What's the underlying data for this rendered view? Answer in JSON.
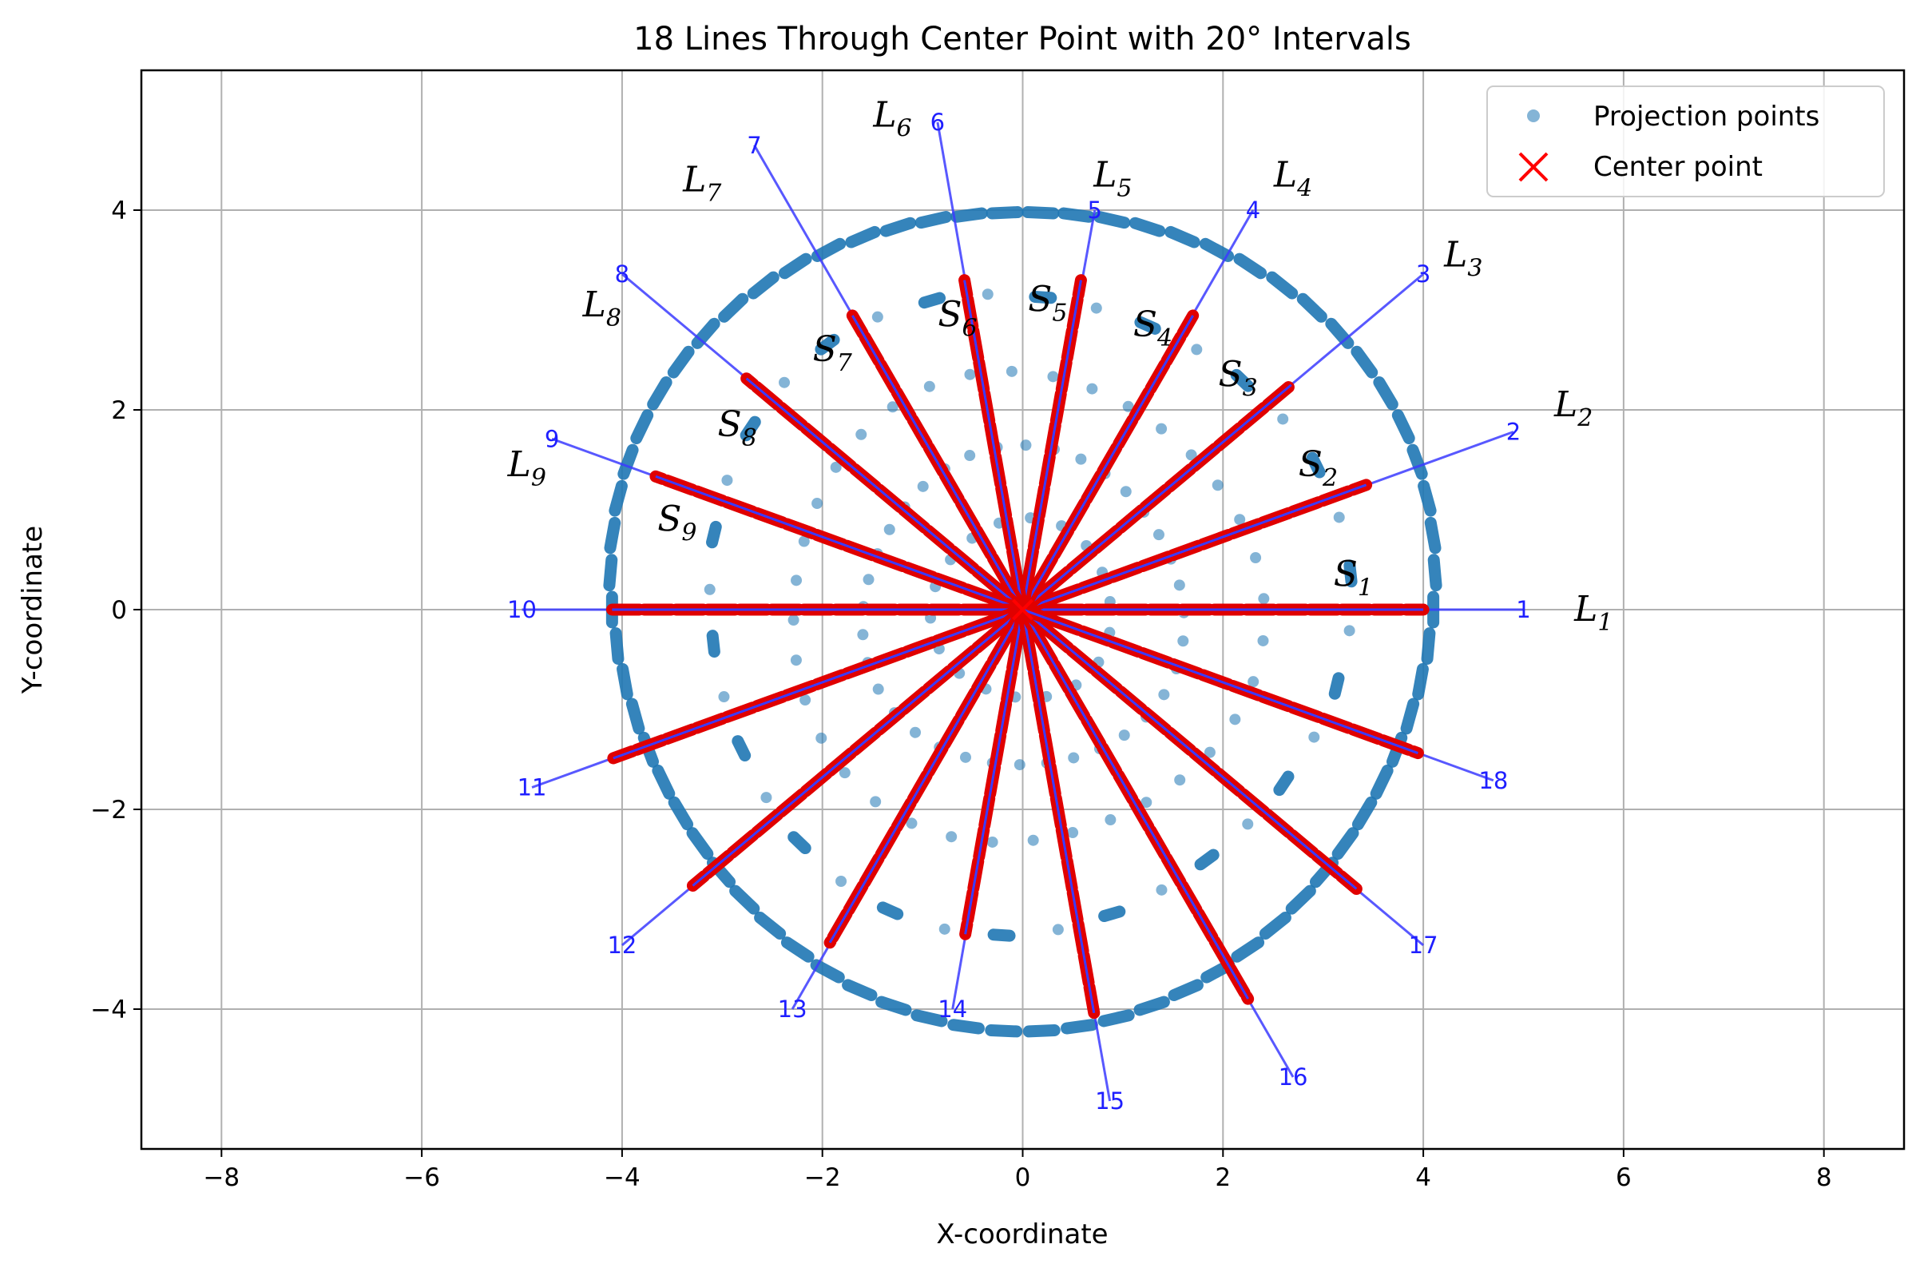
{
  "chart_data": {
    "type": "scatter",
    "title": "18 Lines Through Center Point with 20° Intervals",
    "xlabel": "X-coordinate",
    "ylabel": "Y-coordinate",
    "xlim": [
      -8.8,
      8.8
    ],
    "ylim": [
      -5.4,
      5.4
    ],
    "xticks": [
      -8,
      -6,
      -4,
      -2,
      0,
      2,
      4,
      6,
      8
    ],
    "yticks": [
      -4,
      -2,
      0,
      2,
      4
    ],
    "grid": true,
    "legend_position": "top-right",
    "legend": [
      {
        "label": "Projection points",
        "marker": "circle",
        "color": "#1f77b4"
      },
      {
        "label": "Center point",
        "marker": "x",
        "color": "#ff0000"
      }
    ],
    "center": [
      0,
      0
    ],
    "lines": [
      {
        "label": "1",
        "angle_deg": 0,
        "end": [
          5,
          0
        ],
        "segment_length": 4.0
      },
      {
        "label": "2",
        "angle_deg": 20,
        "end": [
          4.9,
          1.78
        ],
        "segment_length": 3.65
      },
      {
        "label": "3",
        "angle_deg": 40,
        "end": [
          4.0,
          3.36
        ],
        "segment_length": 3.5
      },
      {
        "label": "4",
        "angle_deg": 60,
        "end": [
          2.3,
          4.0
        ],
        "segment_length": 3.4
      },
      {
        "label": "5",
        "angle_deg": 80,
        "end": [
          0.72,
          4.0
        ],
        "segment_length": 3.35
      },
      {
        "label": "6",
        "angle_deg": 100,
        "end": [
          -0.85,
          4.88
        ],
        "segment_length": 3.35
      },
      {
        "label": "7",
        "angle_deg": 120,
        "end": [
          -2.68,
          4.65
        ],
        "segment_length": 3.4
      },
      {
        "label": "8",
        "angle_deg": 140,
        "end": [
          -4.0,
          3.36
        ],
        "segment_length": 3.6
      },
      {
        "label": "9",
        "angle_deg": 160,
        "end": [
          -4.7,
          1.71
        ],
        "segment_length": 3.9
      },
      {
        "label": "10",
        "angle_deg": 180,
        "end": [
          -5,
          0
        ],
        "segment_length": 4.1
      },
      {
        "label": "11",
        "angle_deg": 200,
        "end": [
          -4.9,
          -1.78
        ],
        "segment_length": 4.35
      },
      {
        "label": "12",
        "angle_deg": 220,
        "end": [
          -4.0,
          -3.36
        ],
        "segment_length": 4.3
      },
      {
        "label": "13",
        "angle_deg": 240,
        "end": [
          -2.3,
          -4.0
        ],
        "segment_length": 3.85
      },
      {
        "label": "14",
        "angle_deg": 260,
        "end": [
          -0.7,
          -4.0
        ],
        "segment_length": 3.3
      },
      {
        "label": "15",
        "angle_deg": 280,
        "end": [
          0.87,
          -4.92
        ],
        "segment_length": 4.1
      },
      {
        "label": "16",
        "angle_deg": 300,
        "end": [
          2.7,
          -4.68
        ],
        "segment_length": 4.5
      },
      {
        "label": "17",
        "angle_deg": 320,
        "end": [
          4.0,
          -3.36
        ],
        "segment_length": 4.35
      },
      {
        "label": "18",
        "angle_deg": 340,
        "end": [
          4.7,
          -1.71
        ],
        "segment_length": 4.2
      }
    ],
    "line_annotations": [
      {
        "name": "L",
        "sub": "1",
        "at": [
          5.7,
          0
        ]
      },
      {
        "name": "L",
        "sub": "2",
        "at": [
          5.5,
          2.05
        ]
      },
      {
        "name": "L",
        "sub": "3",
        "at": [
          4.4,
          3.55
        ]
      },
      {
        "name": "L",
        "sub": "4",
        "at": [
          2.7,
          4.35
        ]
      },
      {
        "name": "L",
        "sub": "5",
        "at": [
          0.9,
          4.35
        ]
      },
      {
        "name": "L",
        "sub": "6",
        "at": [
          -1.3,
          4.95
        ]
      },
      {
        "name": "L",
        "sub": "7",
        "at": [
          -3.2,
          4.3
        ]
      },
      {
        "name": "L",
        "sub": "8",
        "at": [
          -4.2,
          3.05
        ]
      },
      {
        "name": "L",
        "sub": "9",
        "at": [
          -4.95,
          1.45
        ]
      }
    ],
    "segment_annotations": [
      {
        "name": "S",
        "sub": "1",
        "at": [
          3.3,
          0.35
        ]
      },
      {
        "name": "S",
        "sub": "2",
        "at": [
          2.95,
          1.45
        ]
      },
      {
        "name": "S",
        "sub": "3",
        "at": [
          2.15,
          2.35
        ]
      },
      {
        "name": "S",
        "sub": "4",
        "at": [
          1.3,
          2.85
        ]
      },
      {
        "name": "S",
        "sub": "5",
        "at": [
          0.25,
          3.1
        ]
      },
      {
        "name": "S",
        "sub": "6",
        "at": [
          -0.65,
          2.95
        ]
      },
      {
        "name": "S",
        "sub": "7",
        "at": [
          -1.9,
          2.6
        ]
      },
      {
        "name": "S",
        "sub": "8",
        "at": [
          -2.85,
          1.85
        ]
      },
      {
        "name": "S",
        "sub": "9",
        "at": [
          -3.45,
          0.9
        ]
      }
    ],
    "projection_rings": [
      {
        "radius": 4.1,
        "point_count": 70
      },
      {
        "radius": 3.2,
        "point_count": 36
      },
      {
        "radius": 2.35,
        "point_count": 36
      },
      {
        "radius": 1.6,
        "point_count": 36
      },
      {
        "radius": 0.9,
        "point_count": 18
      }
    ],
    "colors": {
      "projection": "#1f77b4",
      "line": "#3b3bff",
      "segment": "#e00000",
      "center": "#ff0000",
      "grid": "#b0b0b0"
    }
  }
}
